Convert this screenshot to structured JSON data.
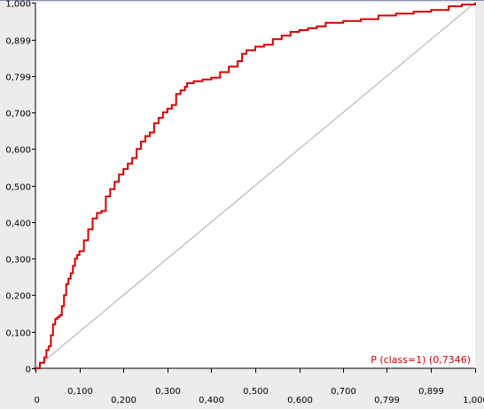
{
  "colors": {
    "curve": "#d40000",
    "diagonal": "#b8b8b8",
    "plot_background": "#ffffff",
    "outer_background": "#ececec",
    "legend_text": "#d40000",
    "top_border": "#7f8fa9"
  },
  "chart_data": {
    "type": "line",
    "title": "",
    "xlabel": "",
    "ylabel": "",
    "xlim": [
      0,
      1.0
    ],
    "ylim": [
      0,
      1.0
    ],
    "grid": false,
    "legend_position": "bottom-right",
    "x_ticks": [
      {
        "value": 0.0,
        "label": "0",
        "row": 1
      },
      {
        "value": 0.1,
        "label": "0,100",
        "row": 0
      },
      {
        "value": 0.2,
        "label": "0,200",
        "row": 1
      },
      {
        "value": 0.3,
        "label": "0,300",
        "row": 0
      },
      {
        "value": 0.4,
        "label": "0,400",
        "row": 1
      },
      {
        "value": 0.5,
        "label": "0,500",
        "row": 0
      },
      {
        "value": 0.6,
        "label": "0,600",
        "row": 1
      },
      {
        "value": 0.7,
        "label": "0,700",
        "row": 0
      },
      {
        "value": 0.799,
        "label": "0,799",
        "row": 1
      },
      {
        "value": 0.899,
        "label": "0,899",
        "row": 0
      },
      {
        "value": 1.0,
        "label": "1,000",
        "row": 1
      }
    ],
    "y_ticks": [
      {
        "value": 0.0,
        "label": "0"
      },
      {
        "value": 0.1,
        "label": "0,100"
      },
      {
        "value": 0.2,
        "label": "0,200"
      },
      {
        "value": 0.3,
        "label": "0,300"
      },
      {
        "value": 0.4,
        "label": "0,400"
      },
      {
        "value": 0.5,
        "label": "0,500"
      },
      {
        "value": 0.6,
        "label": "0,600"
      },
      {
        "value": 0.7,
        "label": "0,700"
      },
      {
        "value": 0.799,
        "label": "0,799"
      },
      {
        "value": 0.899,
        "label": "0,899"
      },
      {
        "value": 1.0,
        "label": "1,000"
      }
    ],
    "series": [
      {
        "name": "P (class=1) (0,7346)",
        "color": "#d40000",
        "x": [
          0.0,
          0.01,
          0.02,
          0.025,
          0.03,
          0.035,
          0.04,
          0.045,
          0.05,
          0.055,
          0.06,
          0.065,
          0.07,
          0.075,
          0.08,
          0.085,
          0.09,
          0.095,
          0.1,
          0.11,
          0.12,
          0.13,
          0.14,
          0.15,
          0.16,
          0.17,
          0.18,
          0.19,
          0.2,
          0.21,
          0.22,
          0.23,
          0.24,
          0.25,
          0.26,
          0.27,
          0.28,
          0.29,
          0.3,
          0.31,
          0.32,
          0.33,
          0.34,
          0.345,
          0.36,
          0.38,
          0.4,
          0.42,
          0.44,
          0.46,
          0.47,
          0.48,
          0.5,
          0.52,
          0.54,
          0.56,
          0.58,
          0.6,
          0.62,
          0.64,
          0.66,
          0.7,
          0.74,
          0.78,
          0.82,
          0.86,
          0.9,
          0.94,
          0.97,
          1.0
        ],
        "y": [
          0.0,
          0.015,
          0.03,
          0.05,
          0.06,
          0.09,
          0.12,
          0.135,
          0.14,
          0.145,
          0.17,
          0.2,
          0.23,
          0.245,
          0.26,
          0.28,
          0.3,
          0.31,
          0.32,
          0.35,
          0.38,
          0.41,
          0.425,
          0.43,
          0.47,
          0.49,
          0.51,
          0.53,
          0.545,
          0.56,
          0.575,
          0.6,
          0.62,
          0.635,
          0.645,
          0.67,
          0.685,
          0.7,
          0.71,
          0.72,
          0.75,
          0.76,
          0.77,
          0.78,
          0.785,
          0.79,
          0.795,
          0.81,
          0.825,
          0.84,
          0.86,
          0.87,
          0.88,
          0.885,
          0.9,
          0.91,
          0.92,
          0.925,
          0.93,
          0.935,
          0.945,
          0.95,
          0.955,
          0.965,
          0.97,
          0.975,
          0.98,
          0.99,
          0.995,
          1.0
        ]
      },
      {
        "name": "",
        "color": "#b8b8b8",
        "x": [
          0.0,
          1.0
        ],
        "y": [
          0.0,
          1.0
        ]
      }
    ]
  }
}
